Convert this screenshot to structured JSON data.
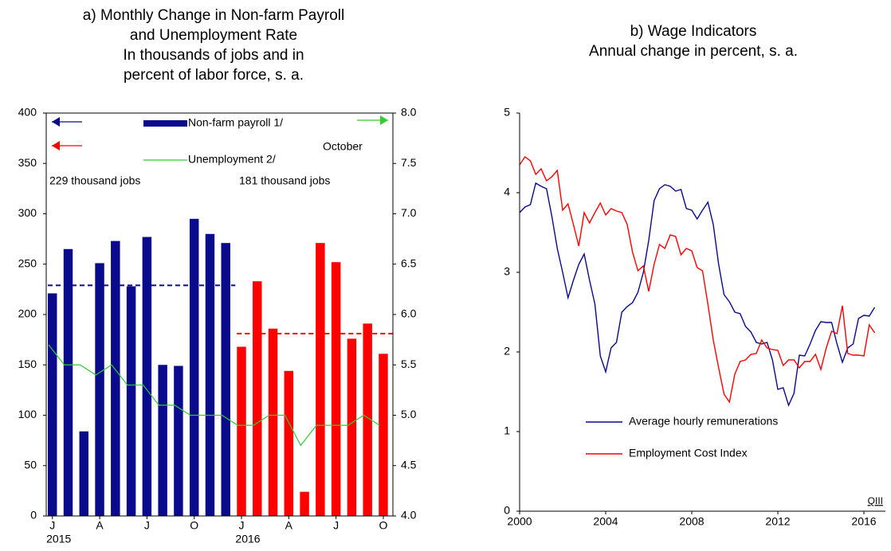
{
  "chart_data": [
    {
      "type": "bar",
      "title": [
        "a) Monthly Change in Non-farm Payroll",
        "and Unemployment Rate"
      ],
      "subtitle": [
        "In thousands of jobs and in",
        "percent of labor force, s. a."
      ],
      "categories": [
        "J",
        null,
        null,
        "A",
        null,
        null,
        "J",
        null,
        null,
        "O",
        null,
        null,
        "J",
        null,
        null,
        "A",
        null,
        null,
        "J",
        null,
        null,
        "O"
      ],
      "x_sublabels": [
        "2015",
        null,
        null,
        null,
        null,
        null,
        null,
        null,
        null,
        null,
        null,
        null,
        "2016",
        null,
        null,
        null,
        null,
        null,
        null,
        null,
        null,
        null
      ],
      "series": [
        {
          "name": "Non-farm payroll 1/",
          "color": "#0a0a8c",
          "colors": [
            "#0a0a8c",
            "#0a0a8c",
            "#0a0a8c",
            "#0a0a8c",
            "#0a0a8c",
            "#0a0a8c",
            "#0a0a8c",
            "#0a0a8c",
            "#0a0a8c",
            "#0a0a8c",
            "#0a0a8c",
            "#0a0a8c",
            "#ff0000",
            "#ff0000",
            "#ff0000",
            "#ff0000",
            "#ff0000",
            "#ff0000",
            "#ff0000",
            "#ff0000",
            "#ff0000",
            "#ff0000"
          ],
          "values": [
            221,
            265,
            84,
            251,
            273,
            228,
            277,
            150,
            149,
            295,
            280,
            271,
            168,
            233,
            186,
            144,
            24,
            271,
            252,
            176,
            191,
            161
          ]
        },
        {
          "name": "Unemployment 2/",
          "type": "line",
          "axis": "y2",
          "color": "#33cc33",
          "values": [
            5.7,
            5.5,
            5.5,
            5.4,
            5.5,
            5.3,
            5.3,
            5.1,
            5.1,
            5.0,
            5.0,
            5.0,
            4.9,
            4.9,
            5.0,
            5.0,
            4.7,
            4.9,
            4.9,
            4.9,
            5.0,
            4.9
          ]
        }
      ],
      "averages": [
        {
          "value": 229,
          "label": "229 thousand jobs",
          "color": "#0a0a8c"
        },
        {
          "value": 181,
          "label": "181 thousand jobs",
          "color": "#ff0000"
        }
      ],
      "annotation": "October",
      "ylim": [
        0,
        400
      ],
      "yticks": [
        0,
        50,
        100,
        150,
        200,
        250,
        300,
        350,
        400
      ],
      "y2lim": [
        4,
        8
      ],
      "y2ticks": [
        {
          "value": 4,
          "label": "4.0"
        },
        4.5,
        {
          "value": 5,
          "label": "5.0"
        },
        5.5,
        {
          "value": 6,
          "label": "6.0"
        },
        6.5,
        {
          "value": 7,
          "label": "7.0"
        },
        7.5,
        {
          "value": 8,
          "label": "8.0"
        }
      ]
    },
    {
      "type": "line",
      "title": [
        "b) Wage Indicators",
        "Annual change in percent, s. a."
      ],
      "x": [
        2000,
        2000.25,
        2000.5,
        2000.75,
        2001,
        2001.25,
        2001.5,
        2001.75,
        2002,
        2002.25,
        2002.5,
        2002.75,
        2003,
        2003.25,
        2003.5,
        2003.75,
        2004,
        2004.25,
        2004.5,
        2004.75,
        2005,
        2005.25,
        2005.5,
        2005.75,
        2006,
        2006.25,
        2006.5,
        2006.75,
        2007,
        2007.25,
        2007.5,
        2007.75,
        2008,
        2008.25,
        2008.5,
        2008.75,
        2009,
        2009.25,
        2009.5,
        2009.75,
        2010,
        2010.25,
        2010.5,
        2010.75,
        2011,
        2011.25,
        2011.5,
        2011.75,
        2012,
        2012.25,
        2012.5,
        2012.75,
        2013,
        2013.25,
        2013.5,
        2013.75,
        2014,
        2014.25,
        2014.5,
        2014.75,
        2015,
        2015.25,
        2015.5,
        2015.75,
        2016,
        2016.25,
        2016.5
      ],
      "series": [
        {
          "name": "Average hourly remunerations",
          "color": "#0a0a8c",
          "values": [
            3.75,
            3.82,
            3.85,
            4.12,
            4.08,
            4.05,
            3.7,
            3.3,
            3.0,
            2.68,
            2.9,
            3.1,
            3.23,
            2.9,
            2.6,
            1.95,
            1.75,
            2.05,
            2.12,
            2.5,
            2.57,
            2.62,
            2.75,
            3.0,
            3.4,
            3.9,
            4.05,
            4.1,
            4.08,
            4.02,
            4.04,
            3.8,
            3.78,
            3.67,
            3.78,
            3.88,
            3.6,
            3.1,
            2.72,
            2.63,
            2.5,
            2.48,
            2.32,
            2.25,
            2.12,
            2.1,
            2.12,
            1.9,
            1.53,
            1.55,
            1.33,
            1.48,
            1.96,
            1.95,
            2.1,
            2.27,
            2.38,
            2.37,
            2.37,
            2.1,
            1.87,
            2.05,
            2.1,
            2.42,
            2.46,
            2.45,
            2.56
          ]
        },
        {
          "name": "Employment Cost Index",
          "color": "#ff0000",
          "values": [
            4.35,
            4.45,
            4.4,
            4.23,
            4.3,
            4.15,
            4.2,
            4.28,
            3.78,
            3.86,
            3.6,
            3.33,
            3.75,
            3.62,
            3.75,
            3.87,
            3.72,
            3.8,
            3.77,
            3.75,
            3.6,
            3.25,
            3.02,
            3.08,
            2.76,
            3.1,
            3.35,
            3.3,
            3.47,
            3.45,
            3.22,
            3.3,
            3.27,
            3.06,
            3.02,
            2.6,
            2.15,
            1.8,
            1.47,
            1.37,
            1.72,
            1.88,
            1.9,
            1.97,
            1.98,
            2.15,
            2.05,
            2.03,
            2.02,
            1.83,
            1.9,
            1.9,
            1.8,
            1.88,
            1.88,
            1.97,
            1.78,
            2.05,
            2.26,
            2.23,
            2.58,
            1.98,
            1.96,
            1.96,
            1.95,
            2.34,
            2.24
          ]
        }
      ],
      "x_end_label": "QIII",
      "xlim": [
        2000,
        2017
      ],
      "xticks": [
        2000,
        2004,
        2008,
        2012,
        2016
      ],
      "ylim": [
        0,
        5
      ],
      "yticks": [
        0,
        1,
        2,
        3,
        4,
        5
      ]
    }
  ]
}
